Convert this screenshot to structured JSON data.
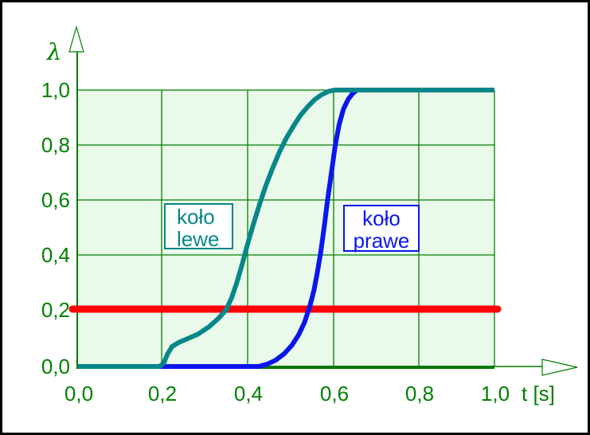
{
  "chart_data": {
    "type": "line",
    "title": "",
    "xlabel": "t [s]",
    "ylabel": "λ",
    "xlim": [
      0,
      1.0
    ],
    "ylim": [
      0,
      1.0
    ],
    "grid": true,
    "x_ticks": {
      "values": [
        0,
        0.2,
        0.4,
        0.6,
        0.8,
        1.0
      ],
      "labels": [
        "0,0",
        "0,2",
        "0,4",
        "0,6",
        "0,8",
        "1,0"
      ]
    },
    "y_ticks": {
      "values": [
        0,
        0.2,
        0.4,
        0.6,
        0.8,
        1.0
      ],
      "labels": [
        "0,0",
        "0,2",
        "0,4",
        "0,6",
        "0,8",
        "1,0"
      ]
    },
    "series": [
      {
        "name": "koło prawe",
        "color": "#0b16ee",
        "points": [
          [
            0,
            0
          ],
          [
            0.425,
            0
          ],
          [
            0.445,
            0.008
          ],
          [
            0.465,
            0.022
          ],
          [
            0.485,
            0.045
          ],
          [
            0.503,
            0.075
          ],
          [
            0.518,
            0.11
          ],
          [
            0.532,
            0.155
          ],
          [
            0.544,
            0.21
          ],
          [
            0.554,
            0.27
          ],
          [
            0.562,
            0.335
          ],
          [
            0.57,
            0.41
          ],
          [
            0.578,
            0.5
          ],
          [
            0.586,
            0.6
          ],
          [
            0.595,
            0.7
          ],
          [
            0.604,
            0.8
          ],
          [
            0.613,
            0.875
          ],
          [
            0.623,
            0.93
          ],
          [
            0.634,
            0.966
          ],
          [
            0.645,
            0.988
          ],
          [
            0.655,
            1.0
          ],
          [
            1.0,
            1.0
          ]
        ]
      },
      {
        "name": "koło lewe",
        "color": "#078789",
        "points": [
          [
            0,
            0
          ],
          [
            0.195,
            0
          ],
          [
            0.205,
            0.012
          ],
          [
            0.214,
            0.045
          ],
          [
            0.224,
            0.07
          ],
          [
            0.24,
            0.085
          ],
          [
            0.26,
            0.098
          ],
          [
            0.285,
            0.115
          ],
          [
            0.31,
            0.14
          ],
          [
            0.332,
            0.17
          ],
          [
            0.35,
            0.2
          ],
          [
            0.363,
            0.245
          ],
          [
            0.375,
            0.3
          ],
          [
            0.388,
            0.37
          ],
          [
            0.4,
            0.44
          ],
          [
            0.413,
            0.51
          ],
          [
            0.428,
            0.585
          ],
          [
            0.443,
            0.655
          ],
          [
            0.458,
            0.715
          ],
          [
            0.474,
            0.775
          ],
          [
            0.49,
            0.825
          ],
          [
            0.507,
            0.87
          ],
          [
            0.523,
            0.908
          ],
          [
            0.54,
            0.94
          ],
          [
            0.556,
            0.965
          ],
          [
            0.572,
            0.983
          ],
          [
            0.588,
            0.995
          ],
          [
            0.603,
            1.0
          ],
          [
            1.0,
            1.0
          ]
        ]
      }
    ],
    "reference_line": {
      "orientation": "horizontal",
      "value": 0.2,
      "color": "#ff0000"
    },
    "legend_position": "inside-plot"
  },
  "legend": {
    "left": {
      "line1": "koło",
      "line2": "lewe"
    },
    "right": {
      "line1": "koło",
      "line2": "prawe"
    }
  },
  "axes_titles": {
    "y": "λ",
    "x": "t [s]"
  },
  "colors": {
    "plot_background": "#eafaea",
    "grid_line": "#008000",
    "axis_line": "#007800",
    "tick_text": "#008000",
    "frame_border": "#000000",
    "canvas": "#ffffff"
  }
}
